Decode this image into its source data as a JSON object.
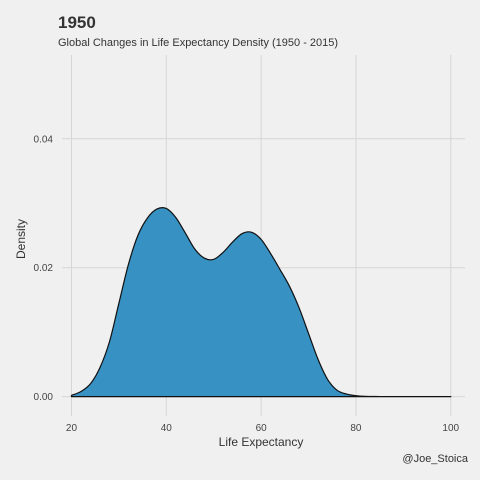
{
  "chart_data": {
    "type": "area",
    "title": "1950",
    "subtitle": "Global Changes in Life Expectancy Density (1950 - 2015)",
    "xlabel": "Life Expectancy",
    "ylabel": "Density",
    "caption": "@Joe_Stoica",
    "xlim": [
      18,
      103
    ],
    "ylim": [
      -0.003,
      0.053
    ],
    "x_ticks": [
      20,
      40,
      60,
      80,
      100
    ],
    "x_tick_labels": [
      "20",
      "40",
      "60",
      "80",
      "100"
    ],
    "y_ticks": [
      0.0,
      0.02,
      0.04
    ],
    "y_tick_labels": [
      "0.00",
      "0.02",
      "0.04"
    ],
    "grid": true,
    "legend": "none",
    "fill_color": "#3791c2",
    "line_color": "#111111",
    "x": [
      20,
      22,
      24,
      26,
      28,
      30,
      32,
      34,
      36,
      38,
      40,
      42,
      44,
      46,
      48,
      50,
      52,
      54,
      56,
      58,
      60,
      62,
      64,
      66,
      68,
      70,
      72,
      74,
      76,
      78,
      80,
      82,
      84,
      86,
      88,
      90,
      95,
      100
    ],
    "y": [
      0.0002,
      0.0008,
      0.002,
      0.0045,
      0.0085,
      0.0145,
      0.0205,
      0.025,
      0.0277,
      0.0291,
      0.0292,
      0.0278,
      0.0254,
      0.0229,
      0.0215,
      0.0213,
      0.0224,
      0.024,
      0.0253,
      0.0255,
      0.0244,
      0.0222,
      0.0197,
      0.0171,
      0.0138,
      0.0098,
      0.0058,
      0.0027,
      0.001,
      0.0004,
      0.00015,
      5e-05,
      2e-05,
      1e-05,
      0.0,
      0.0,
      0.0,
      0.0
    ]
  }
}
